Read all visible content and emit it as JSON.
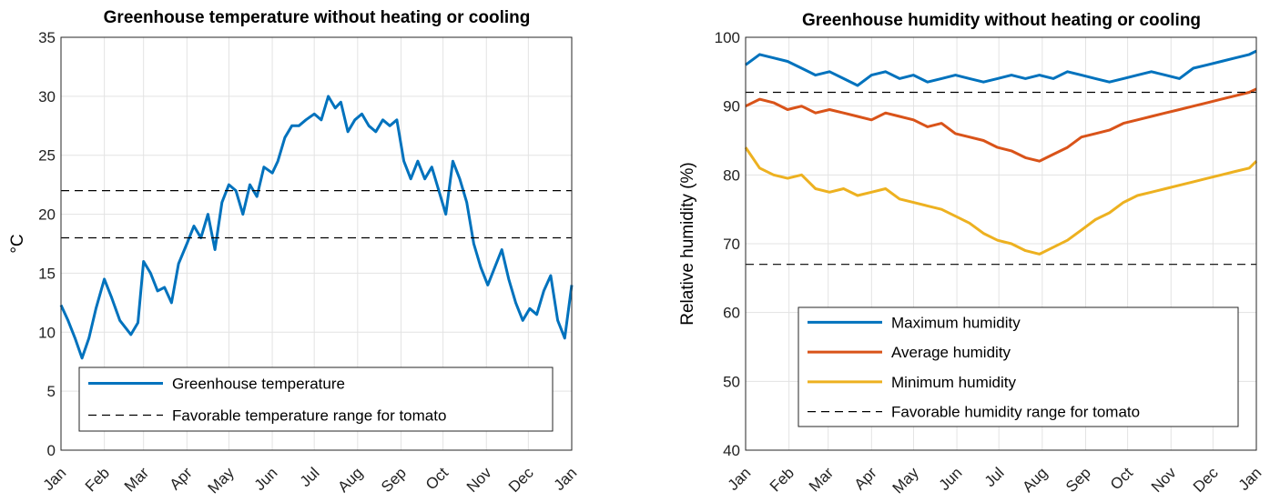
{
  "chart_data": [
    {
      "type": "line",
      "title": "Greenhouse temperature without heating or cooling",
      "xlabel": "",
      "ylabel": "°C",
      "xlim": [
        "Jan",
        "Jan"
      ],
      "ylim": [
        0,
        35
      ],
      "yticks": [
        "0",
        "5",
        "10",
        "15",
        "20",
        "25",
        "30",
        "35"
      ],
      "xticks": [
        "Jan",
        "Feb",
        "Mar",
        "Apr",
        "May",
        "Jun",
        "Jul",
        "Aug",
        "Sep",
        "Oct",
        "Nov",
        "Dec",
        "Jan"
      ],
      "grid": true,
      "legend_position": "bottom",
      "series": [
        {
          "name": "Greenhouse temperature",
          "style": "solid",
          "color": "#0072BD",
          "x": [
            0,
            5,
            10,
            15,
            20,
            25,
            31,
            36,
            42,
            50,
            55,
            59,
            64,
            69,
            74,
            79,
            84,
            90,
            95,
            100,
            105,
            110,
            115,
            120,
            125,
            130,
            135,
            140,
            145,
            151,
            155,
            160,
            165,
            170,
            175,
            181,
            186,
            191,
            196,
            200,
            205,
            210,
            215,
            220,
            225,
            230,
            235,
            240,
            245,
            250,
            255,
            260,
            265,
            270,
            275,
            280,
            285,
            290,
            295,
            300,
            305,
            310,
            315,
            320,
            325,
            330,
            335,
            340,
            345,
            350,
            355,
            360,
            365
          ],
          "values": [
            12.3,
            11.0,
            9.5,
            7.8,
            9.5,
            12.0,
            14.5,
            13.0,
            11.0,
            9.8,
            10.8,
            16.0,
            15.0,
            13.5,
            13.8,
            12.5,
            15.8,
            17.5,
            19.0,
            18.0,
            20.0,
            17.0,
            21.0,
            22.5,
            22.0,
            20.0,
            22.5,
            21.5,
            24.0,
            23.5,
            24.5,
            26.5,
            27.5,
            27.5,
            28.0,
            28.5,
            28.0,
            30.0,
            29.0,
            29.5,
            27.0,
            28.0,
            28.5,
            27.5,
            27.0,
            28.0,
            27.5,
            28.0,
            24.5,
            23.0,
            24.5,
            23.0,
            24.0,
            22.0,
            20.0,
            24.5,
            23.0,
            21.0,
            17.5,
            15.5,
            14.0,
            15.5,
            17.0,
            14.5,
            12.5,
            11.0,
            12.0,
            11.5,
            13.5,
            14.8,
            11.0,
            9.5,
            14.0
          ]
        },
        {
          "name": "Favorable temperature range for tomato",
          "style": "dashed",
          "color": "#000000",
          "bounds": [
            18,
            22
          ]
        }
      ]
    },
    {
      "type": "line",
      "title": "Greenhouse humidity without heating or cooling",
      "xlabel": "",
      "ylabel": "Relative humidity (%)",
      "xlim": [
        "Jan",
        "Jan"
      ],
      "ylim": [
        40,
        100
      ],
      "yticks": [
        "40",
        "50",
        "60",
        "70",
        "80",
        "90",
        "100"
      ],
      "xticks": [
        "Jan",
        "Feb",
        "Mar",
        "Apr",
        "May",
        "Jun",
        "Jul",
        "Aug",
        "Sep",
        "Oct",
        "Nov",
        "Dec",
        "Jan"
      ],
      "grid": true,
      "legend_position": "bottom",
      "series": [
        {
          "name": "Maximum humidity",
          "style": "solid",
          "color": "#0072BD",
          "x": [
            0,
            10,
            20,
            30,
            40,
            50,
            60,
            70,
            80,
            90,
            100,
            110,
            120,
            130,
            140,
            150,
            160,
            170,
            180,
            190,
            200,
            210,
            220,
            230,
            240,
            250,
            260,
            270,
            280,
            290,
            300,
            310,
            320,
            330,
            340,
            350,
            360,
            365
          ],
          "values": [
            96.0,
            97.5,
            97.0,
            96.5,
            95.5,
            94.5,
            95.0,
            94.0,
            93.0,
            94.5,
            95.0,
            94.0,
            94.5,
            93.5,
            94.0,
            94.5,
            94.0,
            93.5,
            94.0,
            94.5,
            94.0,
            94.5,
            94.0,
            95.0,
            94.5,
            94.0,
            93.5,
            94.0,
            94.5,
            95.0,
            94.5,
            94.0,
            95.5,
            96.0,
            96.5,
            97.0,
            97.5,
            98.0
          ]
        },
        {
          "name": "Average humidity",
          "style": "solid",
          "color": "#D95319",
          "x": [
            0,
            10,
            20,
            30,
            40,
            50,
            60,
            70,
            80,
            90,
            100,
            110,
            120,
            130,
            140,
            150,
            160,
            170,
            180,
            190,
            200,
            210,
            220,
            230,
            240,
            250,
            260,
            270,
            280,
            290,
            300,
            310,
            320,
            330,
            340,
            350,
            360,
            365
          ],
          "values": [
            90.0,
            91.0,
            90.5,
            89.5,
            90.0,
            89.0,
            89.5,
            89.0,
            88.5,
            88.0,
            89.0,
            88.5,
            88.0,
            87.0,
            87.5,
            86.0,
            85.5,
            85.0,
            84.0,
            83.5,
            82.5,
            82.0,
            83.0,
            84.0,
            85.5,
            86.0,
            86.5,
            87.5,
            88.0,
            88.5,
            89.0,
            89.5,
            90.0,
            90.5,
            91.0,
            91.5,
            92.0,
            92.5
          ]
        },
        {
          "name": "Minimum humidity",
          "style": "solid",
          "color": "#EDB120",
          "x": [
            0,
            10,
            20,
            30,
            40,
            50,
            60,
            70,
            80,
            90,
            100,
            110,
            120,
            130,
            140,
            150,
            160,
            170,
            180,
            190,
            200,
            210,
            220,
            230,
            240,
            250,
            260,
            270,
            280,
            290,
            300,
            310,
            320,
            330,
            340,
            350,
            360,
            365
          ],
          "values": [
            84.0,
            81.0,
            80.0,
            79.5,
            80.0,
            78.0,
            77.5,
            78.0,
            77.0,
            77.5,
            78.0,
            76.5,
            76.0,
            75.5,
            75.0,
            74.0,
            73.0,
            71.5,
            70.5,
            70.0,
            69.0,
            68.5,
            69.5,
            70.5,
            72.0,
            73.5,
            74.5,
            76.0,
            77.0,
            77.5,
            78.0,
            78.5,
            79.0,
            79.5,
            80.0,
            80.5,
            81.0,
            82.0
          ]
        },
        {
          "name": "Favorable humidity range for tomato",
          "style": "dashed",
          "color": "#000000",
          "bounds": [
            67,
            92
          ]
        }
      ]
    }
  ]
}
